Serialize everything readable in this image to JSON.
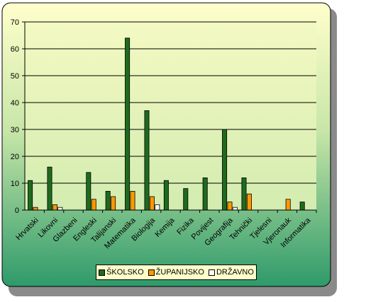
{
  "chart_data": {
    "type": "bar",
    "categories": [
      "Hrvatski",
      "Likovni",
      "Glazbeni",
      "Engleski",
      "Talijanski",
      "Matematika",
      "Biologija",
      "Kemija",
      "Fizika",
      "Povijest",
      "Geografija",
      "Tehnički",
      "Tjelesni",
      "Vjeronauk",
      "Informatika"
    ],
    "series": [
      {
        "name": "ŠKOLSKO",
        "color": "#1e6b1e",
        "values": [
          11,
          16,
          0,
          14,
          7,
          64,
          37,
          11,
          8,
          12,
          30,
          12,
          0,
          0,
          3
        ]
      },
      {
        "name": "ŽUPANIJSKO",
        "color": "#ff9900",
        "values": [
          1,
          2,
          0,
          4,
          5,
          7,
          5,
          0,
          0,
          0,
          3,
          6,
          0,
          4,
          0
        ]
      },
      {
        "name": "DRŽAVNO",
        "color": "#ffffff",
        "values": [
          0,
          1,
          0,
          0,
          0,
          0,
          2,
          0,
          0,
          0,
          1,
          0,
          0,
          0,
          0
        ]
      }
    ],
    "yticks": [
      0,
      10,
      20,
      30,
      40,
      50,
      60,
      70
    ],
    "ylim": [
      0,
      70
    ],
    "grid": true,
    "legend": "bottom"
  }
}
